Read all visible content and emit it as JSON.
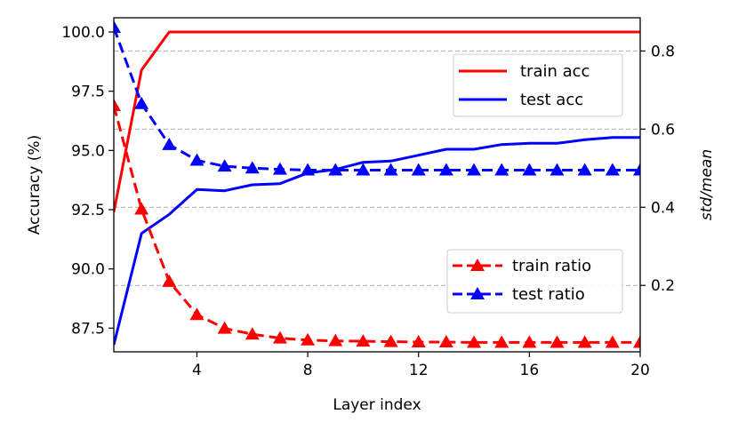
{
  "chart_data": {
    "type": "line",
    "xlabel": "Layer index",
    "ylabel_left": "Accuracy (%)",
    "ylabel_right": "std/mean",
    "xlim": [
      1,
      20
    ],
    "ylim_left": [
      86.5,
      100.6
    ],
    "ylim_right": [
      0.03,
      0.885
    ],
    "x_ticks": [
      4,
      8,
      12,
      16,
      20
    ],
    "y_ticks_left": [
      "87.5",
      "90.0",
      "92.5",
      "95.0",
      "97.5",
      "100.0"
    ],
    "y_ticks_right": [
      "0.2",
      "0.4",
      "0.6",
      "0.8"
    ],
    "grid": "horizontal dashed (right axis)",
    "x": [
      1,
      2,
      3,
      4,
      5,
      6,
      7,
      8,
      9,
      10,
      11,
      12,
      13,
      14,
      15,
      16,
      17,
      18,
      19,
      20
    ],
    "series": [
      {
        "name": "train acc",
        "axis": "left",
        "color": "#ff0000",
        "style": "solid",
        "marker": "none",
        "values": [
          92.4,
          98.4,
          100.0,
          100.0,
          100.0,
          100.0,
          100.0,
          100.0,
          100.0,
          100.0,
          100.0,
          100.0,
          100.0,
          100.0,
          100.0,
          100.0,
          100.0,
          100.0,
          100.0,
          100.0
        ]
      },
      {
        "name": "test acc",
        "axis": "left",
        "color": "#0000ff",
        "style": "solid",
        "marker": "none",
        "values": [
          86.8,
          91.5,
          92.3,
          93.35,
          93.3,
          93.55,
          93.6,
          94.05,
          94.2,
          94.5,
          94.55,
          94.8,
          95.05,
          95.05,
          95.25,
          95.3,
          95.3,
          95.45,
          95.55,
          95.55
        ]
      },
      {
        "name": "train ratio",
        "axis": "right",
        "color": "#ff0000",
        "style": "dashed",
        "marker": "triangle",
        "values": [
          0.66,
          0.395,
          0.21,
          0.125,
          0.09,
          0.075,
          0.065,
          0.06,
          0.058,
          0.057,
          0.056,
          0.055,
          0.055,
          0.054,
          0.054,
          0.054,
          0.054,
          0.054,
          0.054,
          0.054
        ]
      },
      {
        "name": "test ratio",
        "axis": "right",
        "color": "#0000ff",
        "style": "dashed",
        "marker": "triangle",
        "values": [
          0.86,
          0.665,
          0.56,
          0.52,
          0.505,
          0.5,
          0.497,
          0.495,
          0.495,
          0.495,
          0.495,
          0.495,
          0.495,
          0.495,
          0.495,
          0.495,
          0.495,
          0.495,
          0.495,
          0.495
        ]
      }
    ],
    "legends": [
      {
        "placement": "upper-right",
        "entries": [
          "train acc",
          "test acc"
        ]
      },
      {
        "placement": "lower-right",
        "entries": [
          "train ratio",
          "test ratio"
        ]
      }
    ]
  }
}
